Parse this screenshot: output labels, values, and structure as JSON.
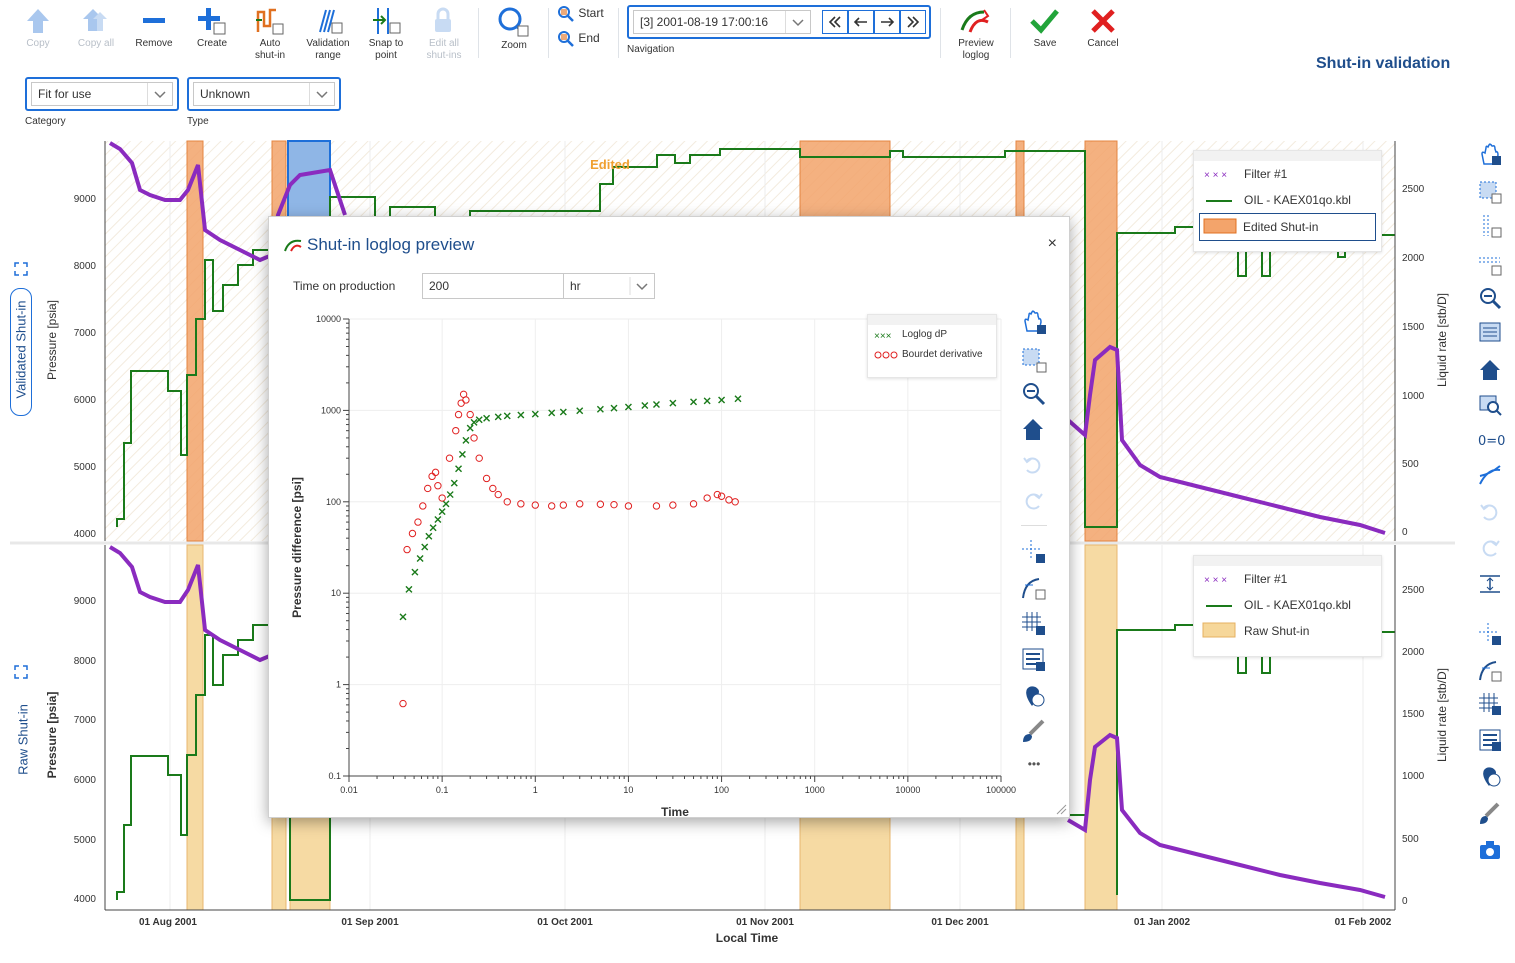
{
  "toolbar": {
    "copy": "Copy",
    "copy_all": "Copy all",
    "remove": "Remove",
    "create": "Create",
    "auto_shutin": [
      "Auto",
      "shut-in"
    ],
    "validation_range": [
      "Validation",
      "range"
    ],
    "snap_to_point": [
      "Snap to",
      "point"
    ],
    "edit_all": [
      "Edit all",
      "shut-ins"
    ],
    "zoom": "Zoom",
    "start": "Start",
    "end": "End",
    "navigation_value": "[3] 2001-08-19 17:00:16",
    "navigation_label": "Navigation",
    "preview_loglog": [
      "Preview",
      "loglog"
    ],
    "save": "Save",
    "cancel": "Cancel"
  },
  "filters": {
    "category_value": "Fit for use",
    "category_label": "Category",
    "type_value": "Unknown",
    "type_label": "Type"
  },
  "page_title": "Shut-in validation",
  "top_plot": {
    "side_label": "Validated Shut-in",
    "y_left_label": "Pressure [psia]",
    "y_right_label": "Liquid rate [stb/D]",
    "y_left_ticks": [
      "9000",
      "8000",
      "7000",
      "6000",
      "5000",
      "4000"
    ],
    "y_right_ticks": [
      "2500",
      "2000",
      "1500",
      "1000",
      "500",
      "0"
    ],
    "annotation": "Edited",
    "legend": [
      "Filter #1",
      "OIL - KAEX01qo.kbl",
      "Edited Shut-in"
    ]
  },
  "bottom_plot": {
    "side_label": "Raw Shut-in",
    "y_left_label": "Pressure [psia]",
    "y_right_label": "Liquid rate [stb/D]",
    "y_left_ticks": [
      "9000",
      "8000",
      "7000",
      "6000",
      "5000",
      "4000"
    ],
    "y_right_ticks": [
      "2500",
      "2000",
      "1500",
      "1000",
      "500",
      "0"
    ],
    "legend": [
      "Filter #1",
      "OIL - KAEX01qo.kbl",
      "Raw Shut-in"
    ]
  },
  "x_axis": {
    "label": "Local Time",
    "ticks": [
      "01 Aug 2001",
      "01 Sep 2001",
      "01 Oct 2001",
      "01 Nov 2001",
      "01 Dec 2001",
      "01 Jan 2002",
      "01 Feb 2002"
    ]
  },
  "dialog": {
    "title": "Shut-in loglog preview",
    "close": "×",
    "top_label": "Time on production",
    "top_value": "200",
    "unit_value": "hr",
    "legend": [
      "Loglog dP",
      "Bourdet derivative"
    ],
    "more": "•••"
  },
  "colors": {
    "accent": "#1e6fd9",
    "title_blue": "#1f4e8c",
    "pressure": "#8a2bbf",
    "rate": "#1a7a1a",
    "edited_shutin": "#f3a46b",
    "raw_shutin": "#f6d79a",
    "selected_shutin": "#8fb6e6",
    "save": "#22a43a",
    "cancel": "#e02020"
  },
  "chart_data": {
    "type": "scatter",
    "title": "",
    "xlabel": "Time",
    "ylabel": "Pressure difference [psi]",
    "x_scale": "log",
    "y_scale": "log",
    "xlim": [
      0.01,
      100000
    ],
    "ylim": [
      0.1,
      10000
    ],
    "x_ticks": [
      "0.01",
      "0.1",
      "1",
      "10",
      "100",
      "1000",
      "10000",
      "100000"
    ],
    "y_ticks": [
      "10000",
      "1000",
      "100",
      "10",
      "1",
      "0.1"
    ],
    "legend_position": "top-right",
    "series": [
      {
        "name": "Loglog dP",
        "marker": "x",
        "x": [
          0.038,
          0.044,
          0.051,
          0.058,
          0.065,
          0.072,
          0.08,
          0.09,
          0.1,
          0.11,
          0.122,
          0.135,
          0.15,
          0.165,
          0.18,
          0.2,
          0.22,
          0.25,
          0.3,
          0.4,
          0.5,
          0.7,
          1,
          1.5,
          2,
          3,
          5,
          7,
          10,
          15,
          20,
          30,
          50,
          70,
          100,
          150
        ],
        "y": [
          5.5,
          11,
          17,
          24,
          32,
          42,
          52,
          64,
          78,
          95,
          120,
          160,
          230,
          330,
          470,
          640,
          740,
          790,
          820,
          850,
          870,
          890,
          910,
          940,
          960,
          990,
          1030,
          1060,
          1090,
          1130,
          1160,
          1200,
          1240,
          1270,
          1300,
          1340
        ]
      },
      {
        "name": "Bourdet derivative",
        "marker": "o",
        "x": [
          0.038,
          0.042,
          0.048,
          0.055,
          0.062,
          0.07,
          0.078,
          0.085,
          0.09,
          0.1,
          0.12,
          0.14,
          0.15,
          0.16,
          0.17,
          0.18,
          0.2,
          0.22,
          0.25,
          0.3,
          0.35,
          0.4,
          0.5,
          0.7,
          1,
          1.5,
          2,
          3,
          5,
          7,
          10,
          20,
          30,
          50,
          70,
          90,
          100,
          120,
          140
        ],
        "y": [
          0.62,
          30,
          45,
          60,
          90,
          140,
          190,
          210,
          150,
          110,
          300,
          600,
          900,
          1200,
          1500,
          1300,
          900,
          500,
          300,
          180,
          140,
          120,
          100,
          95,
          92,
          90,
          92,
          95,
          94,
          93,
          90,
          90,
          92,
          95,
          110,
          120,
          115,
          105,
          100
        ]
      }
    ]
  }
}
